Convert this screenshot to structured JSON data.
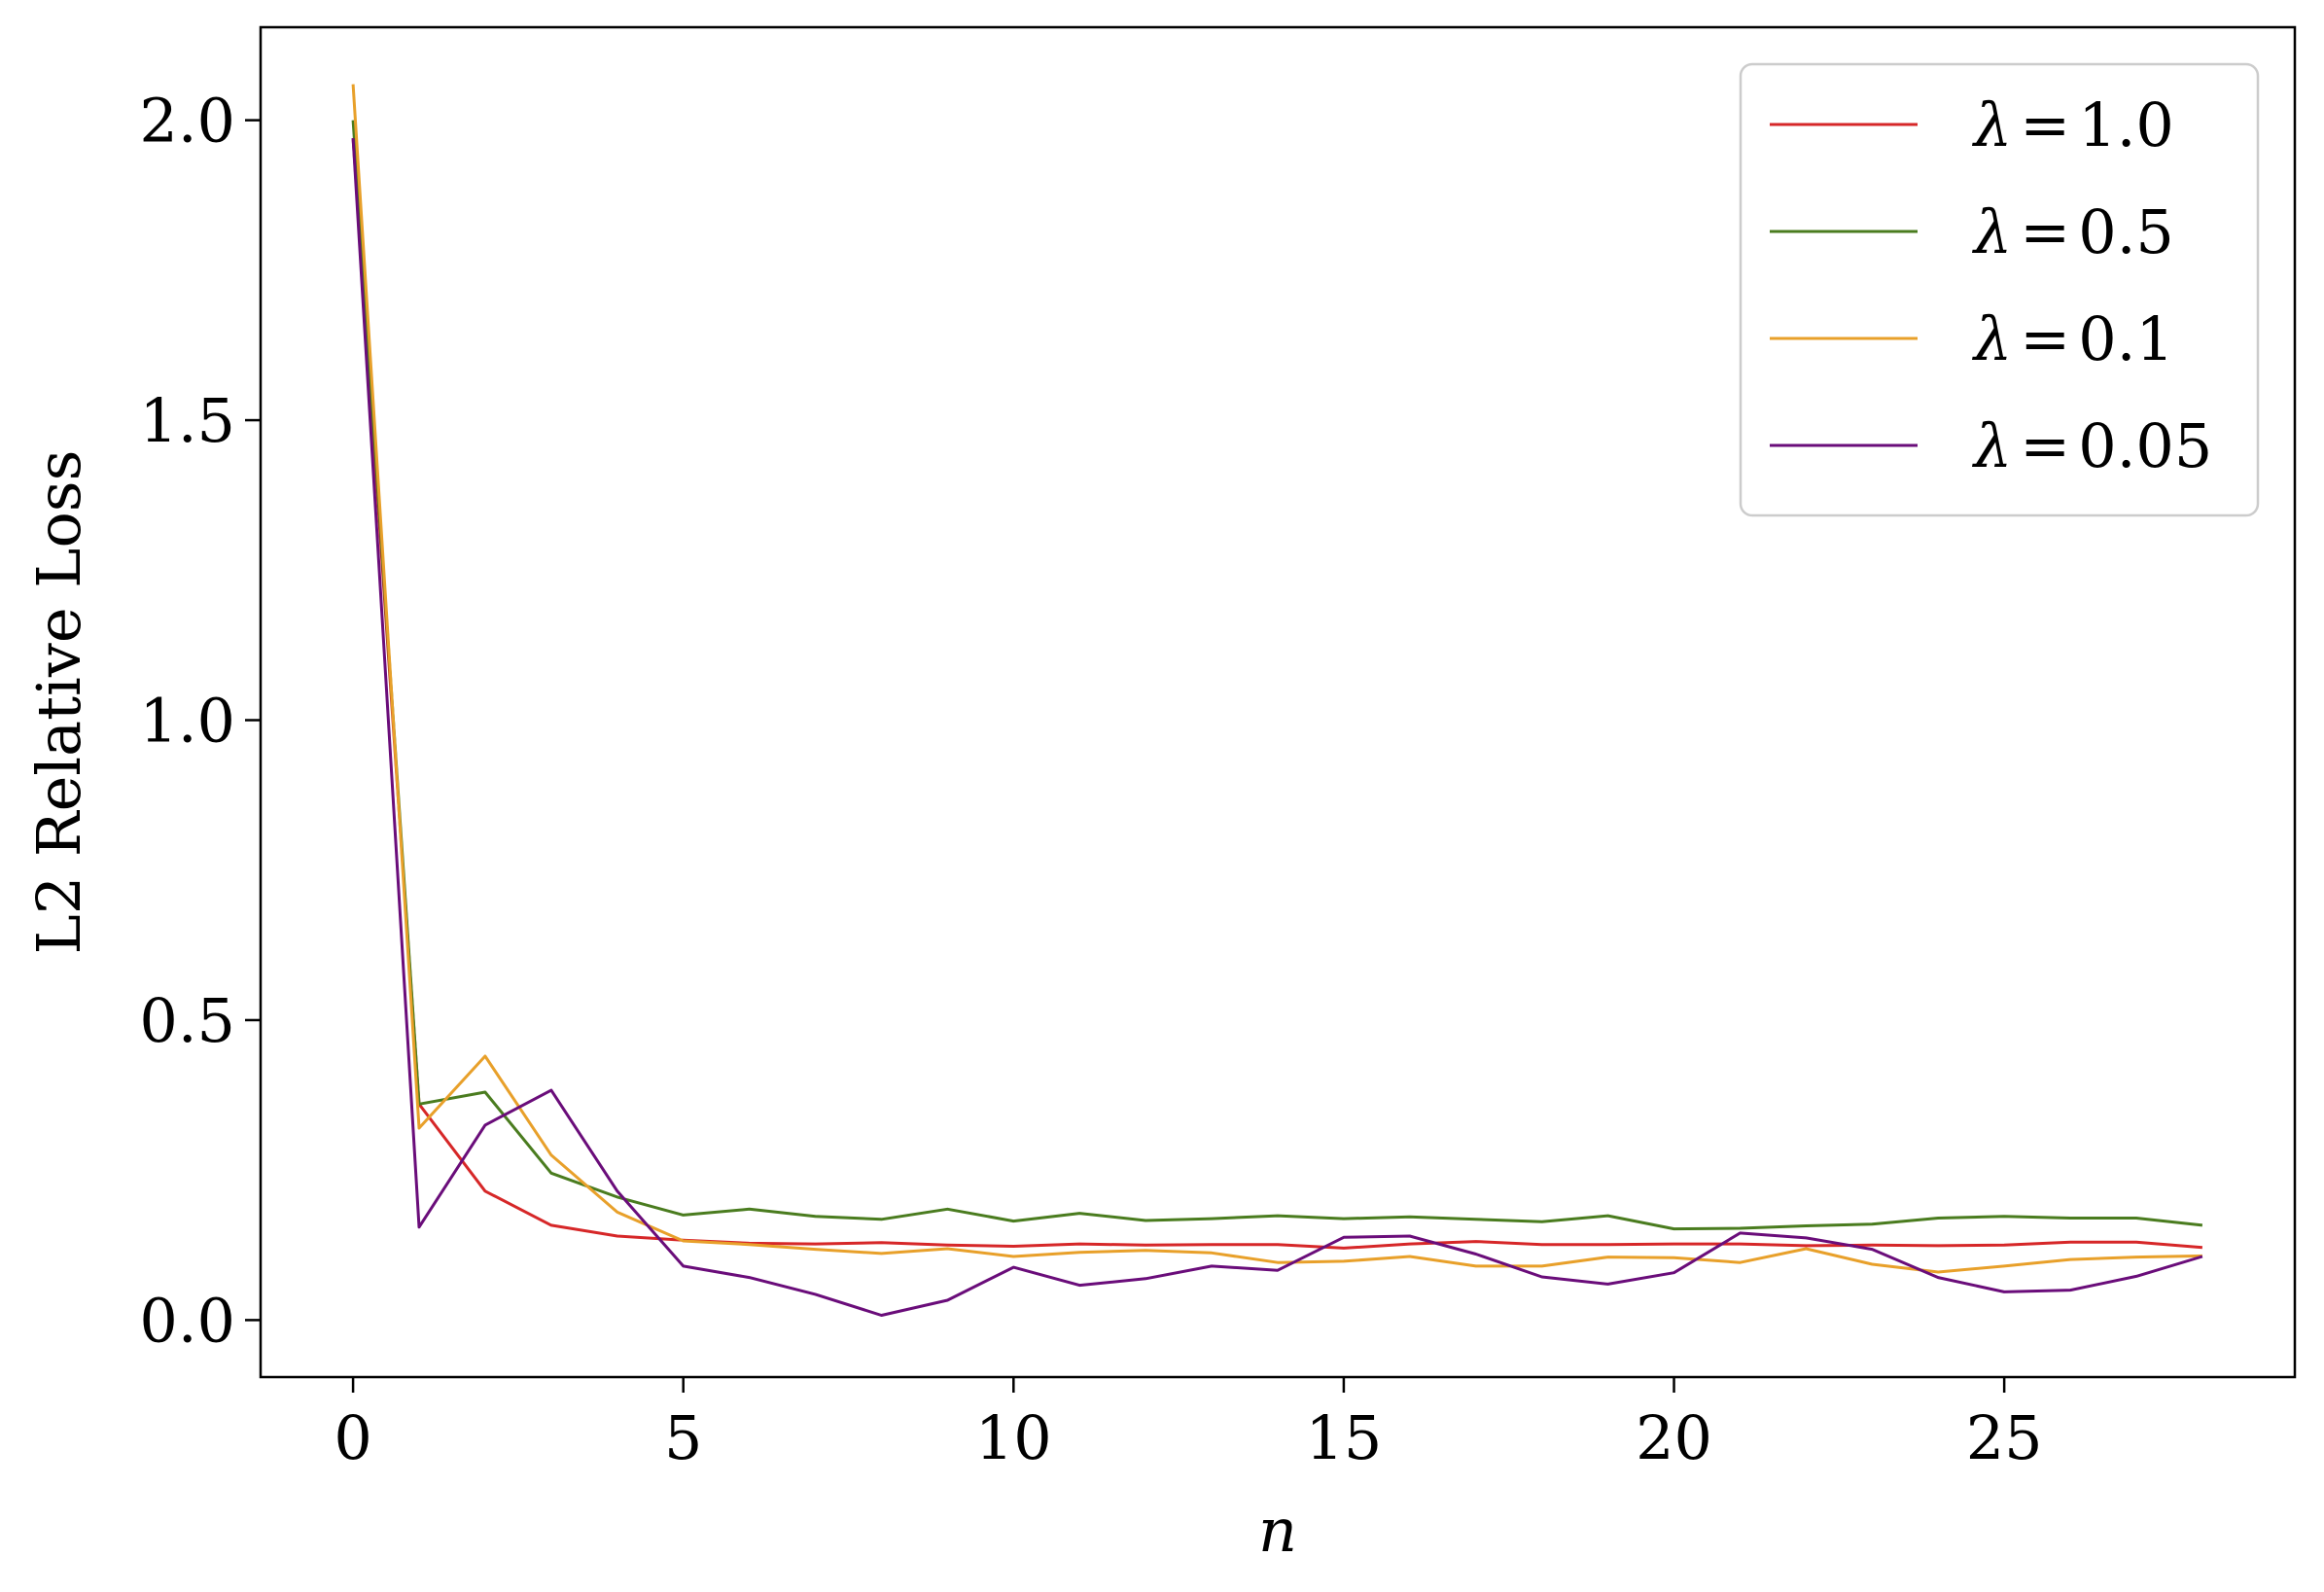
{
  "chart_data": {
    "type": "line",
    "title": "",
    "xlabel": "n",
    "ylabel": "L2 Relative Loss",
    "xlim": [
      -1.4,
      29.4
    ],
    "ylim": [
      -0.095,
      2.155
    ],
    "xticks": [
      0,
      5,
      10,
      15,
      20,
      25
    ],
    "yticks": [
      0.0,
      0.5,
      1.0,
      1.5,
      2.0
    ],
    "xtick_labels": [
      "0",
      "5",
      "10",
      "15",
      "20",
      "25"
    ],
    "ytick_labels": [
      "0.0",
      "0.5",
      "1.0",
      "1.5",
      "2.0"
    ],
    "grid": false,
    "legend_position": "top-right",
    "x": [
      0,
      1,
      2,
      3,
      4,
      5,
      6,
      7,
      8,
      9,
      10,
      11,
      12,
      13,
      14,
      15,
      16,
      17,
      18,
      19,
      20,
      21,
      22,
      23,
      24,
      25,
      26,
      27,
      28
    ],
    "series": [
      {
        "name": "λ = 1.0",
        "color": "#d62728",
        "values": [
          1.97,
          0.36,
          0.215,
          0.158,
          0.14,
          0.133,
          0.128,
          0.127,
          0.129,
          0.125,
          0.123,
          0.127,
          0.125,
          0.126,
          0.126,
          0.12,
          0.127,
          0.131,
          0.126,
          0.126,
          0.127,
          0.127,
          0.124,
          0.125,
          0.124,
          0.125,
          0.13,
          0.13,
          0.121
        ]
      },
      {
        "name": "λ = 0.5",
        "color": "#4a7c1f",
        "values": [
          2.0,
          0.36,
          0.38,
          0.245,
          0.205,
          0.175,
          0.185,
          0.173,
          0.168,
          0.185,
          0.165,
          0.178,
          0.166,
          0.169,
          0.174,
          0.169,
          0.172,
          0.168,
          0.164,
          0.174,
          0.152,
          0.153,
          0.157,
          0.16,
          0.17,
          0.173,
          0.17,
          0.17,
          0.158
        ]
      },
      {
        "name": "λ = 0.1",
        "color": "#e8a02a",
        "values": [
          2.06,
          0.32,
          0.44,
          0.275,
          0.18,
          0.132,
          0.126,
          0.118,
          0.111,
          0.119,
          0.106,
          0.113,
          0.116,
          0.112,
          0.096,
          0.098,
          0.106,
          0.09,
          0.09,
          0.105,
          0.104,
          0.096,
          0.119,
          0.093,
          0.08,
          0.09,
          0.101,
          0.105,
          0.107
        ]
      },
      {
        "name": "λ = 0.05",
        "color": "#6a0d7a",
        "values": [
          1.97,
          0.155,
          0.325,
          0.383,
          0.215,
          0.09,
          0.071,
          0.043,
          0.008,
          0.033,
          0.088,
          0.058,
          0.069,
          0.09,
          0.083,
          0.138,
          0.14,
          0.11,
          0.072,
          0.06,
          0.079,
          0.145,
          0.137,
          0.118,
          0.071,
          0.047,
          0.05,
          0.073,
          0.106
        ]
      }
    ],
    "legend": [
      {
        "lhs": "λ",
        "eq": "=",
        "rhs": "1.0"
      },
      {
        "lhs": "λ",
        "eq": "=",
        "rhs": "0.5"
      },
      {
        "lhs": "λ",
        "eq": "=",
        "rhs": "0.1"
      },
      {
        "lhs": "λ",
        "eq": "=",
        "rhs": "0.05"
      }
    ]
  }
}
